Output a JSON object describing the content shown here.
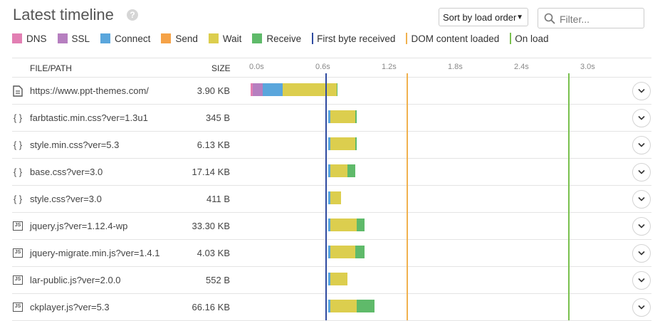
{
  "title": "Latest timeline",
  "help_icon": "?",
  "sort": {
    "label": "Sort by load order",
    "caret": "▼"
  },
  "filter": {
    "placeholder": "Filter..."
  },
  "legend": [
    {
      "label": "DNS",
      "color": "#e27fb3",
      "kind": "swatch"
    },
    {
      "label": "SSL",
      "color": "#b67fc0",
      "kind": "swatch"
    },
    {
      "label": "Connect",
      "color": "#5aa6dc",
      "kind": "swatch"
    },
    {
      "label": "Send",
      "color": "#f5a247",
      "kind": "swatch"
    },
    {
      "label": "Wait",
      "color": "#dcce4e",
      "kind": "swatch"
    },
    {
      "label": "Receive",
      "color": "#5fba6a",
      "kind": "swatch"
    },
    {
      "label": "First byte received",
      "color": "#2e4aa0",
      "kind": "line"
    },
    {
      "label": "DOM content loaded",
      "color": "#f0b14e",
      "kind": "line"
    },
    {
      "label": "On load",
      "color": "#79c04e",
      "kind": "line"
    }
  ],
  "header": {
    "file": "FILE/PATH",
    "size": "SIZE"
  },
  "ticks": [
    "0.0s",
    "0.6s",
    "1.2s",
    "1.8s",
    "2.4s",
    "3.0s"
  ],
  "markers": {
    "first_byte_s": 0.68,
    "dom_content_loaded_s": 1.41,
    "on_load_s": 2.88
  },
  "rows": [
    {
      "icon": "document-icon",
      "file": "https://www.ppt-themes.com/",
      "size": "3.90 KB",
      "start_s": 0.0,
      "timing": {
        "dns": 0.02,
        "ssl": 0.09,
        "connect": 0.18,
        "send": 0.0,
        "wait": 0.49,
        "receive": 0.01
      }
    },
    {
      "icon": "css-icon",
      "file": "farbtastic.min.css?ver=1.3u1",
      "size": "345 B",
      "start_s": 0.7,
      "timing": {
        "dns": 0.0,
        "ssl": 0.0,
        "connect": 0.02,
        "send": 0.0,
        "wait": 0.23,
        "receive": 0.01
      }
    },
    {
      "icon": "css-icon",
      "file": "style.min.css?ver=5.3",
      "size": "6.13 KB",
      "start_s": 0.7,
      "timing": {
        "dns": 0.0,
        "ssl": 0.0,
        "connect": 0.02,
        "send": 0.0,
        "wait": 0.23,
        "receive": 0.01
      }
    },
    {
      "icon": "css-icon",
      "file": "base.css?ver=3.0",
      "size": "17.14 KB",
      "start_s": 0.7,
      "timing": {
        "dns": 0.0,
        "ssl": 0.0,
        "connect": 0.02,
        "send": 0.0,
        "wait": 0.16,
        "receive": 0.07
      }
    },
    {
      "icon": "css-icon",
      "file": "style.css?ver=3.0",
      "size": "411 B",
      "start_s": 0.7,
      "timing": {
        "dns": 0.0,
        "ssl": 0.0,
        "connect": 0.02,
        "send": 0.0,
        "wait": 0.1,
        "receive": 0.0
      }
    },
    {
      "icon": "js-icon",
      "file": "jquery.js?ver=1.12.4-wp",
      "size": "33.30 KB",
      "start_s": 0.7,
      "timing": {
        "dns": 0.0,
        "ssl": 0.0,
        "connect": 0.02,
        "send": 0.0,
        "wait": 0.24,
        "receive": 0.07
      }
    },
    {
      "icon": "js-icon",
      "file": "jquery-migrate.min.js?ver=1.4.1",
      "size": "4.03 KB",
      "start_s": 0.7,
      "timing": {
        "dns": 0.0,
        "ssl": 0.0,
        "connect": 0.02,
        "send": 0.0,
        "wait": 0.23,
        "receive": 0.08
      }
    },
    {
      "icon": "js-icon",
      "file": "lar-public.js?ver=2.0.0",
      "size": "552 B",
      "start_s": 0.7,
      "timing": {
        "dns": 0.0,
        "ssl": 0.0,
        "connect": 0.02,
        "send": 0.0,
        "wait": 0.16,
        "receive": 0.0
      }
    },
    {
      "icon": "js-icon",
      "file": "ckplayer.js?ver=5.3",
      "size": "66.16 KB",
      "start_s": 0.7,
      "timing": {
        "dns": 0.0,
        "ssl": 0.0,
        "connect": 0.02,
        "send": 0.0,
        "wait": 0.24,
        "receive": 0.16
      }
    }
  ]
}
